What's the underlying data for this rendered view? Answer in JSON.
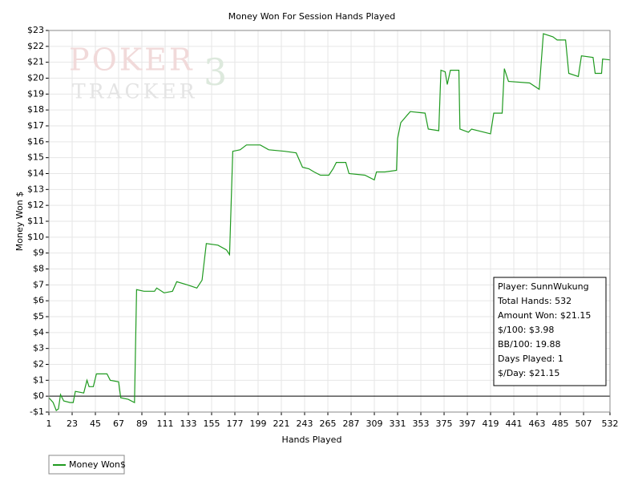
{
  "chart_data": {
    "type": "line",
    "title": "Money Won For Session Hands Played",
    "x_label": "Hands Played",
    "y_label": "Money Won $",
    "watermark": {
      "line1": "POKER",
      "line2": "TRACKER",
      "mark": "3"
    },
    "x": [
      1,
      5,
      8,
      10,
      12,
      15,
      21,
      24,
      26,
      34,
      37,
      39,
      43,
      46,
      56,
      59,
      67,
      69,
      76,
      82,
      84,
      91,
      101,
      103,
      110,
      118,
      122,
      132,
      141,
      146,
      150,
      161,
      169,
      172,
      175,
      182,
      188,
      201,
      209,
      224,
      235,
      241,
      247,
      252,
      258,
      266,
      270,
      273,
      282,
      285,
      300,
      309,
      311,
      319,
      330,
      331,
      334,
      343,
      357,
      360,
      370,
      372,
      376,
      378,
      381,
      389,
      390,
      398,
      401,
      419,
      422,
      430,
      432,
      436,
      456,
      465,
      469,
      478,
      482,
      490,
      493,
      502,
      505,
      516,
      518,
      524,
      525,
      532
    ],
    "series": [
      {
        "name": "Money Won$",
        "color": "#1f9a1f",
        "values": [
          -0.1,
          -0.4,
          -0.9,
          -0.8,
          0.1,
          -0.3,
          -0.4,
          -0.4,
          0.3,
          0.2,
          1.0,
          0.6,
          0.6,
          1.4,
          1.4,
          1.0,
          0.9,
          -0.1,
          -0.2,
          -0.4,
          6.7,
          6.6,
          6.6,
          6.8,
          6.5,
          6.6,
          7.2,
          7.0,
          6.8,
          7.3,
          9.6,
          9.5,
          9.2,
          8.9,
          15.4,
          15.5,
          15.8,
          15.8,
          15.5,
          15.4,
          15.3,
          14.4,
          14.3,
          14.1,
          13.9,
          13.9,
          14.3,
          14.7,
          14.7,
          14.0,
          13.9,
          13.6,
          14.1,
          14.1,
          14.2,
          16.2,
          17.2,
          17.9,
          17.8,
          16.8,
          16.7,
          20.5,
          20.4,
          19.6,
          20.5,
          20.5,
          16.8,
          16.6,
          16.8,
          16.5,
          17.8,
          17.8,
          20.6,
          19.8,
          19.7,
          19.3,
          22.8,
          22.6,
          22.4,
          22.4,
          20.3,
          20.1,
          21.4,
          21.3,
          20.3,
          20.3,
          21.2,
          21.15
        ]
      }
    ],
    "xlim": [
      1,
      532
    ],
    "xticks": [
      1,
      23,
      45,
      67,
      89,
      111,
      133,
      155,
      177,
      199,
      221,
      243,
      265,
      287,
      309,
      331,
      353,
      375,
      397,
      419,
      441,
      463,
      485,
      507,
      532
    ],
    "ylim": [
      -1,
      23
    ],
    "yticks": [
      {
        "value": -1,
        "label": "-$1"
      },
      {
        "value": 0,
        "label": "$0"
      },
      {
        "value": 1,
        "label": "$1"
      },
      {
        "value": 2,
        "label": "$2"
      },
      {
        "value": 3,
        "label": "$3"
      },
      {
        "value": 4,
        "label": "$4"
      },
      {
        "value": 5,
        "label": "$5"
      },
      {
        "value": 6,
        "label": "$6"
      },
      {
        "value": 7,
        "label": "$7"
      },
      {
        "value": 8,
        "label": "$8"
      },
      {
        "value": 9,
        "label": "$9"
      },
      {
        "value": 10,
        "label": "$10"
      },
      {
        "value": 11,
        "label": "$11"
      },
      {
        "value": 12,
        "label": "$12"
      },
      {
        "value": 13,
        "label": "$13"
      },
      {
        "value": 14,
        "label": "$14"
      },
      {
        "value": 15,
        "label": "$15"
      },
      {
        "value": 16,
        "label": "$16"
      },
      {
        "value": 17,
        "label": "$17"
      },
      {
        "value": 18,
        "label": "$18"
      },
      {
        "value": 19,
        "label": "$19"
      },
      {
        "value": 20,
        "label": "$20"
      },
      {
        "value": 21,
        "label": "$21"
      },
      {
        "value": 22,
        "label": "$22"
      },
      {
        "value": 23,
        "label": "$23"
      }
    ],
    "grid": true,
    "stats_box": [
      "Player: SunnWukung",
      "Total Hands: 532",
      "Amount Won: $21.15",
      "$/100: $3.98",
      "BB/100: 19.88",
      "Days Played: 1",
      "$/Day: $21.15"
    ]
  }
}
